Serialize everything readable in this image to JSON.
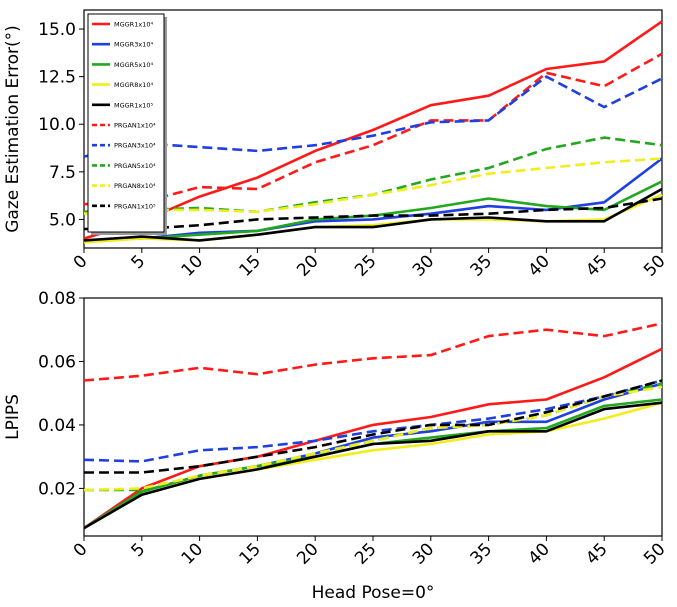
{
  "chart_data": [
    {
      "type": "line",
      "ylabel": "Gaze Estimation Error(°)",
      "xlabel": "",
      "x": [
        0,
        5,
        10,
        15,
        20,
        25,
        30,
        35,
        40,
        45,
        50
      ],
      "xticks": [
        "0",
        "5",
        "10",
        "15",
        "20",
        "25",
        "30",
        "35",
        "40",
        "45",
        "50"
      ],
      "yticks": [
        5.0,
        7.5,
        10.0,
        12.5,
        15.0
      ],
      "ytick_labels": [
        "5.0",
        "7.5",
        "10.0",
        "12.5",
        "15.0"
      ],
      "ylim": [
        3.5,
        16.0
      ],
      "xlim": [
        0,
        50
      ],
      "legend": "top-left",
      "grid": false,
      "series": [
        {
          "name": "MGGR1x10⁴",
          "color": "#ff1a1a",
          "dash": "solid",
          "values": [
            4.0,
            4.9,
            6.2,
            7.2,
            8.6,
            9.7,
            11.0,
            11.5,
            12.9,
            13.3,
            15.4
          ]
        },
        {
          "name": "MGGR3x10⁴",
          "color": "#1f3fe0",
          "dash": "solid",
          "values": [
            3.9,
            4.0,
            4.3,
            4.4,
            4.9,
            5.0,
            5.3,
            5.7,
            5.5,
            5.9,
            8.2
          ]
        },
        {
          "name": "MGGR5x10⁴",
          "color": "#22a81f",
          "dash": "solid",
          "values": [
            3.9,
            4.0,
            4.2,
            4.4,
            5.0,
            5.2,
            5.6,
            6.1,
            5.7,
            5.5,
            7.0
          ]
        },
        {
          "name": "MGGR8x10⁴",
          "color": "#f0ee1c",
          "dash": "solid",
          "values": [
            3.8,
            4.0,
            3.9,
            4.2,
            4.6,
            4.7,
            5.0,
            5.0,
            4.9,
            5.0,
            6.3
          ]
        },
        {
          "name": "MGGR1x10⁵",
          "color": "#000000",
          "dash": "solid",
          "values": [
            3.9,
            4.1,
            3.9,
            4.2,
            4.6,
            4.6,
            5.0,
            5.1,
            4.9,
            4.9,
            6.6
          ]
        },
        {
          "name": "PRGAN1x10⁴",
          "color": "#ff1a1a",
          "dash": "dashed",
          "values": [
            5.8,
            5.9,
            6.7,
            6.6,
            8.0,
            8.9,
            10.2,
            10.2,
            12.7,
            12.0,
            13.7
          ]
        },
        {
          "name": "PRGAN3x10⁴",
          "color": "#1f3fe0",
          "dash": "dashed",
          "values": [
            8.3,
            9.0,
            8.8,
            8.6,
            8.9,
            9.4,
            10.1,
            10.2,
            12.5,
            10.9,
            12.4
          ]
        },
        {
          "name": "PRGAN5x10⁴",
          "color": "#22a81f",
          "dash": "dashed",
          "values": [
            5.4,
            5.5,
            5.6,
            5.4,
            5.9,
            6.3,
            7.1,
            7.7,
            8.7,
            9.3,
            8.9
          ]
        },
        {
          "name": "PRGAN8x10⁴",
          "color": "#f0ee1c",
          "dash": "dashed",
          "values": [
            5.3,
            5.5,
            5.5,
            5.4,
            5.8,
            6.3,
            6.8,
            7.4,
            7.7,
            8.0,
            8.2
          ]
        },
        {
          "name": "PRGAN1x10⁵",
          "color": "#000000",
          "dash": "dashed",
          "values": [
            4.5,
            4.5,
            4.7,
            5.0,
            5.1,
            5.2,
            5.2,
            5.3,
            5.5,
            5.6,
            6.1
          ]
        }
      ]
    },
    {
      "type": "line",
      "ylabel": "LPIPS",
      "xlabel": "Head Pose=0°",
      "x": [
        0,
        5,
        10,
        15,
        20,
        25,
        30,
        35,
        40,
        45,
        50
      ],
      "xticks": [
        "0",
        "5",
        "10",
        "15",
        "20",
        "25",
        "30",
        "35",
        "40",
        "45",
        "50"
      ],
      "yticks": [
        0.02,
        0.04,
        0.06,
        0.08
      ],
      "ytick_labels": [
        "0.02",
        "0.04",
        "0.06",
        "0.08"
      ],
      "ylim": [
        0.005,
        0.08
      ],
      "xlim": [
        0,
        50
      ],
      "legend": "none",
      "grid": false,
      "series": [
        {
          "color": "#ff1a1a",
          "dash": "solid",
          "values": [
            0.0075,
            0.02,
            0.027,
            0.03,
            0.035,
            0.04,
            0.0425,
            0.0465,
            0.048,
            0.055,
            0.064
          ]
        },
        {
          "color": "#1f3fe0",
          "dash": "solid",
          "values": [
            0.0075,
            0.019,
            0.024,
            0.027,
            0.031,
            0.036,
            0.038,
            0.041,
            0.041,
            0.048,
            0.053
          ]
        },
        {
          "color": "#22a81f",
          "dash": "solid",
          "values": [
            0.0075,
            0.019,
            0.024,
            0.027,
            0.03,
            0.034,
            0.036,
            0.038,
            0.039,
            0.046,
            0.048
          ]
        },
        {
          "color": "#f0ee1c",
          "dash": "solid",
          "values": [
            0.0075,
            0.018,
            0.023,
            0.026,
            0.029,
            0.032,
            0.034,
            0.037,
            0.038,
            0.042,
            0.047
          ]
        },
        {
          "color": "#000000",
          "dash": "solid",
          "values": [
            0.0075,
            0.018,
            0.023,
            0.026,
            0.03,
            0.034,
            0.035,
            0.038,
            0.038,
            0.045,
            0.047
          ]
        },
        {
          "color": "#ff1a1a",
          "dash": "dashed",
          "values": [
            0.054,
            0.0555,
            0.058,
            0.056,
            0.059,
            0.061,
            0.062,
            0.068,
            0.07,
            0.068,
            0.072
          ]
        },
        {
          "color": "#1f3fe0",
          "dash": "dashed",
          "values": [
            0.029,
            0.0285,
            0.032,
            0.033,
            0.035,
            0.038,
            0.04,
            0.042,
            0.045,
            0.049,
            0.054
          ]
        },
        {
          "color": "#22a81f",
          "dash": "dashed",
          "values": [
            0.0195,
            0.0195,
            0.024,
            0.027,
            0.031,
            0.035,
            0.039,
            0.04,
            0.043,
            0.049,
            0.053
          ]
        },
        {
          "color": "#f0ee1c",
          "dash": "dashed",
          "values": [
            0.0195,
            0.02,
            0.024,
            0.027,
            0.031,
            0.035,
            0.039,
            0.04,
            0.043,
            0.049,
            0.052
          ]
        },
        {
          "color": "#000000",
          "dash": "dashed",
          "values": [
            0.025,
            0.025,
            0.027,
            0.03,
            0.033,
            0.037,
            0.04,
            0.04,
            0.044,
            0.049,
            0.054
          ]
        }
      ]
    }
  ]
}
